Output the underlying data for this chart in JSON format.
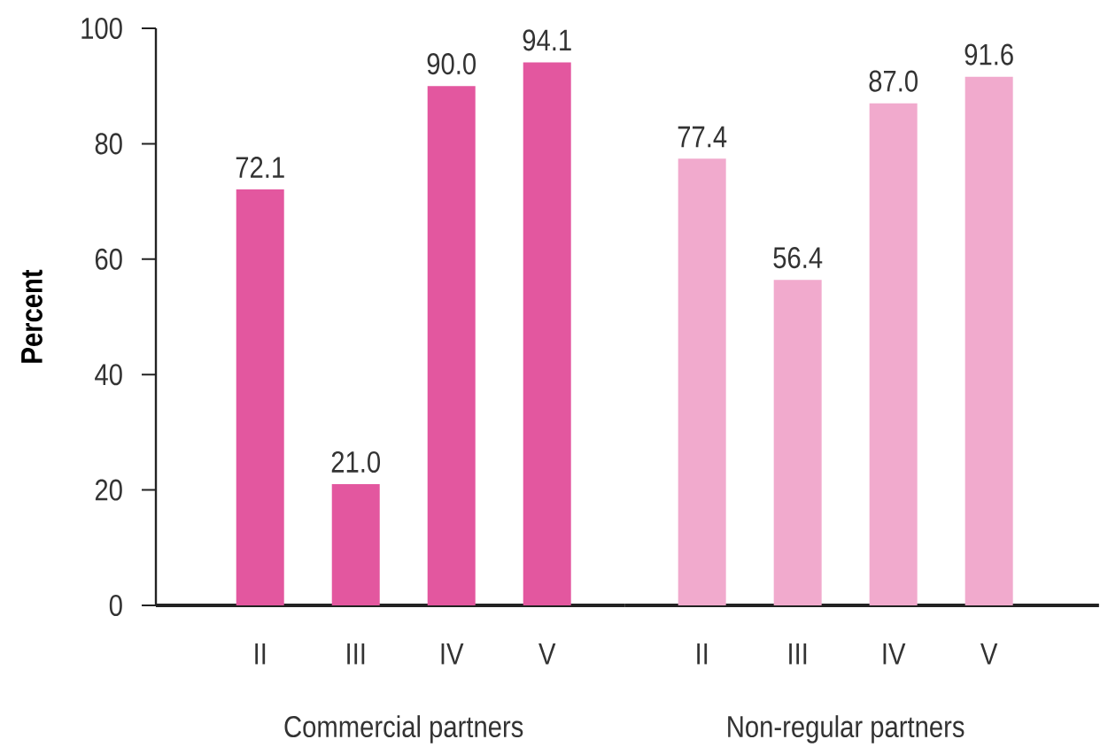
{
  "chart_data": [
    {
      "type": "bar",
      "xlabel": "Commercial partners",
      "ylabel": "Percent",
      "categories": [
        "II",
        "III",
        "IV",
        "V"
      ],
      "values": [
        72.1,
        21.0,
        90.0,
        94.1
      ],
      "value_labels": [
        "72.1",
        "21.0",
        "90.0",
        "94.1"
      ],
      "color": "#e3579f",
      "ylim": [
        0,
        100
      ],
      "yticks": [
        0,
        20,
        40,
        60,
        80,
        100
      ]
    },
    {
      "type": "bar",
      "xlabel": "Non-regular partners",
      "categories": [
        "II",
        "III",
        "IV",
        "V"
      ],
      "values": [
        77.4,
        56.4,
        87.0,
        91.6
      ],
      "value_labels": [
        "77.4",
        "56.4",
        "87.0",
        "91.6"
      ],
      "color": "#f1aacd",
      "ylim": [
        0,
        100
      ],
      "tick_labels": "x"
    }
  ]
}
